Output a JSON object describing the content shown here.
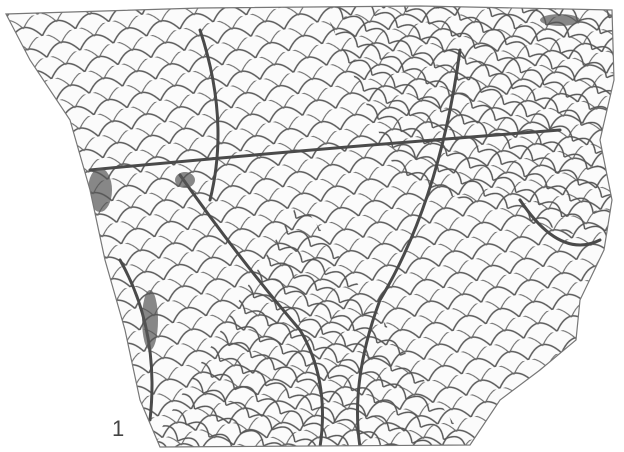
{
  "figure": {
    "label": "1"
  }
}
